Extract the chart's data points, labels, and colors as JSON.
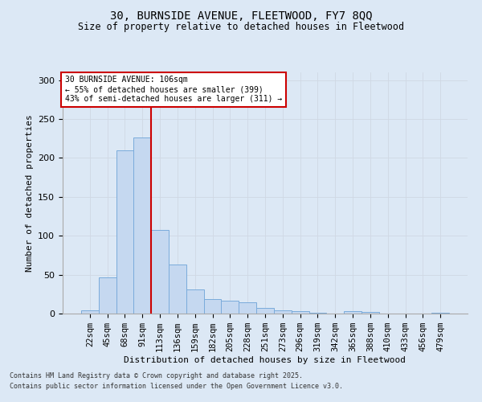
{
  "title1": "30, BURNSIDE AVENUE, FLEETWOOD, FY7 8QQ",
  "title2": "Size of property relative to detached houses in Fleetwood",
  "xlabel": "Distribution of detached houses by size in Fleetwood",
  "ylabel": "Number of detached properties",
  "categories": [
    "22sqm",
    "45sqm",
    "68sqm",
    "91sqm",
    "113sqm",
    "136sqm",
    "159sqm",
    "182sqm",
    "205sqm",
    "228sqm",
    "251sqm",
    "273sqm",
    "296sqm",
    "319sqm",
    "342sqm",
    "365sqm",
    "388sqm",
    "410sqm",
    "433sqm",
    "456sqm",
    "479sqm"
  ],
  "values": [
    4,
    46,
    210,
    226,
    107,
    63,
    31,
    19,
    17,
    14,
    7,
    4,
    3,
    1,
    0,
    3,
    2,
    0,
    0,
    0,
    1
  ],
  "bar_color": "#c5d8f0",
  "bar_edge_color": "#7aabdb",
  "grid_color": "#d0d8e4",
  "vline_x_idx": 4,
  "vline_color": "#cc0000",
  "annotation_text": "30 BURNSIDE AVENUE: 106sqm\n← 55% of detached houses are smaller (399)\n43% of semi-detached houses are larger (311) →",
  "annotation_box_color": "#cc0000",
  "annotation_bg": "#ffffff",
  "ylim": [
    0,
    310
  ],
  "yticks": [
    0,
    50,
    100,
    150,
    200,
    250,
    300
  ],
  "footer1": "Contains HM Land Registry data © Crown copyright and database right 2025.",
  "footer2": "Contains public sector information licensed under the Open Government Licence v3.0.",
  "bg_color": "#dce8f5",
  "plot_bg": "#dce8f5"
}
